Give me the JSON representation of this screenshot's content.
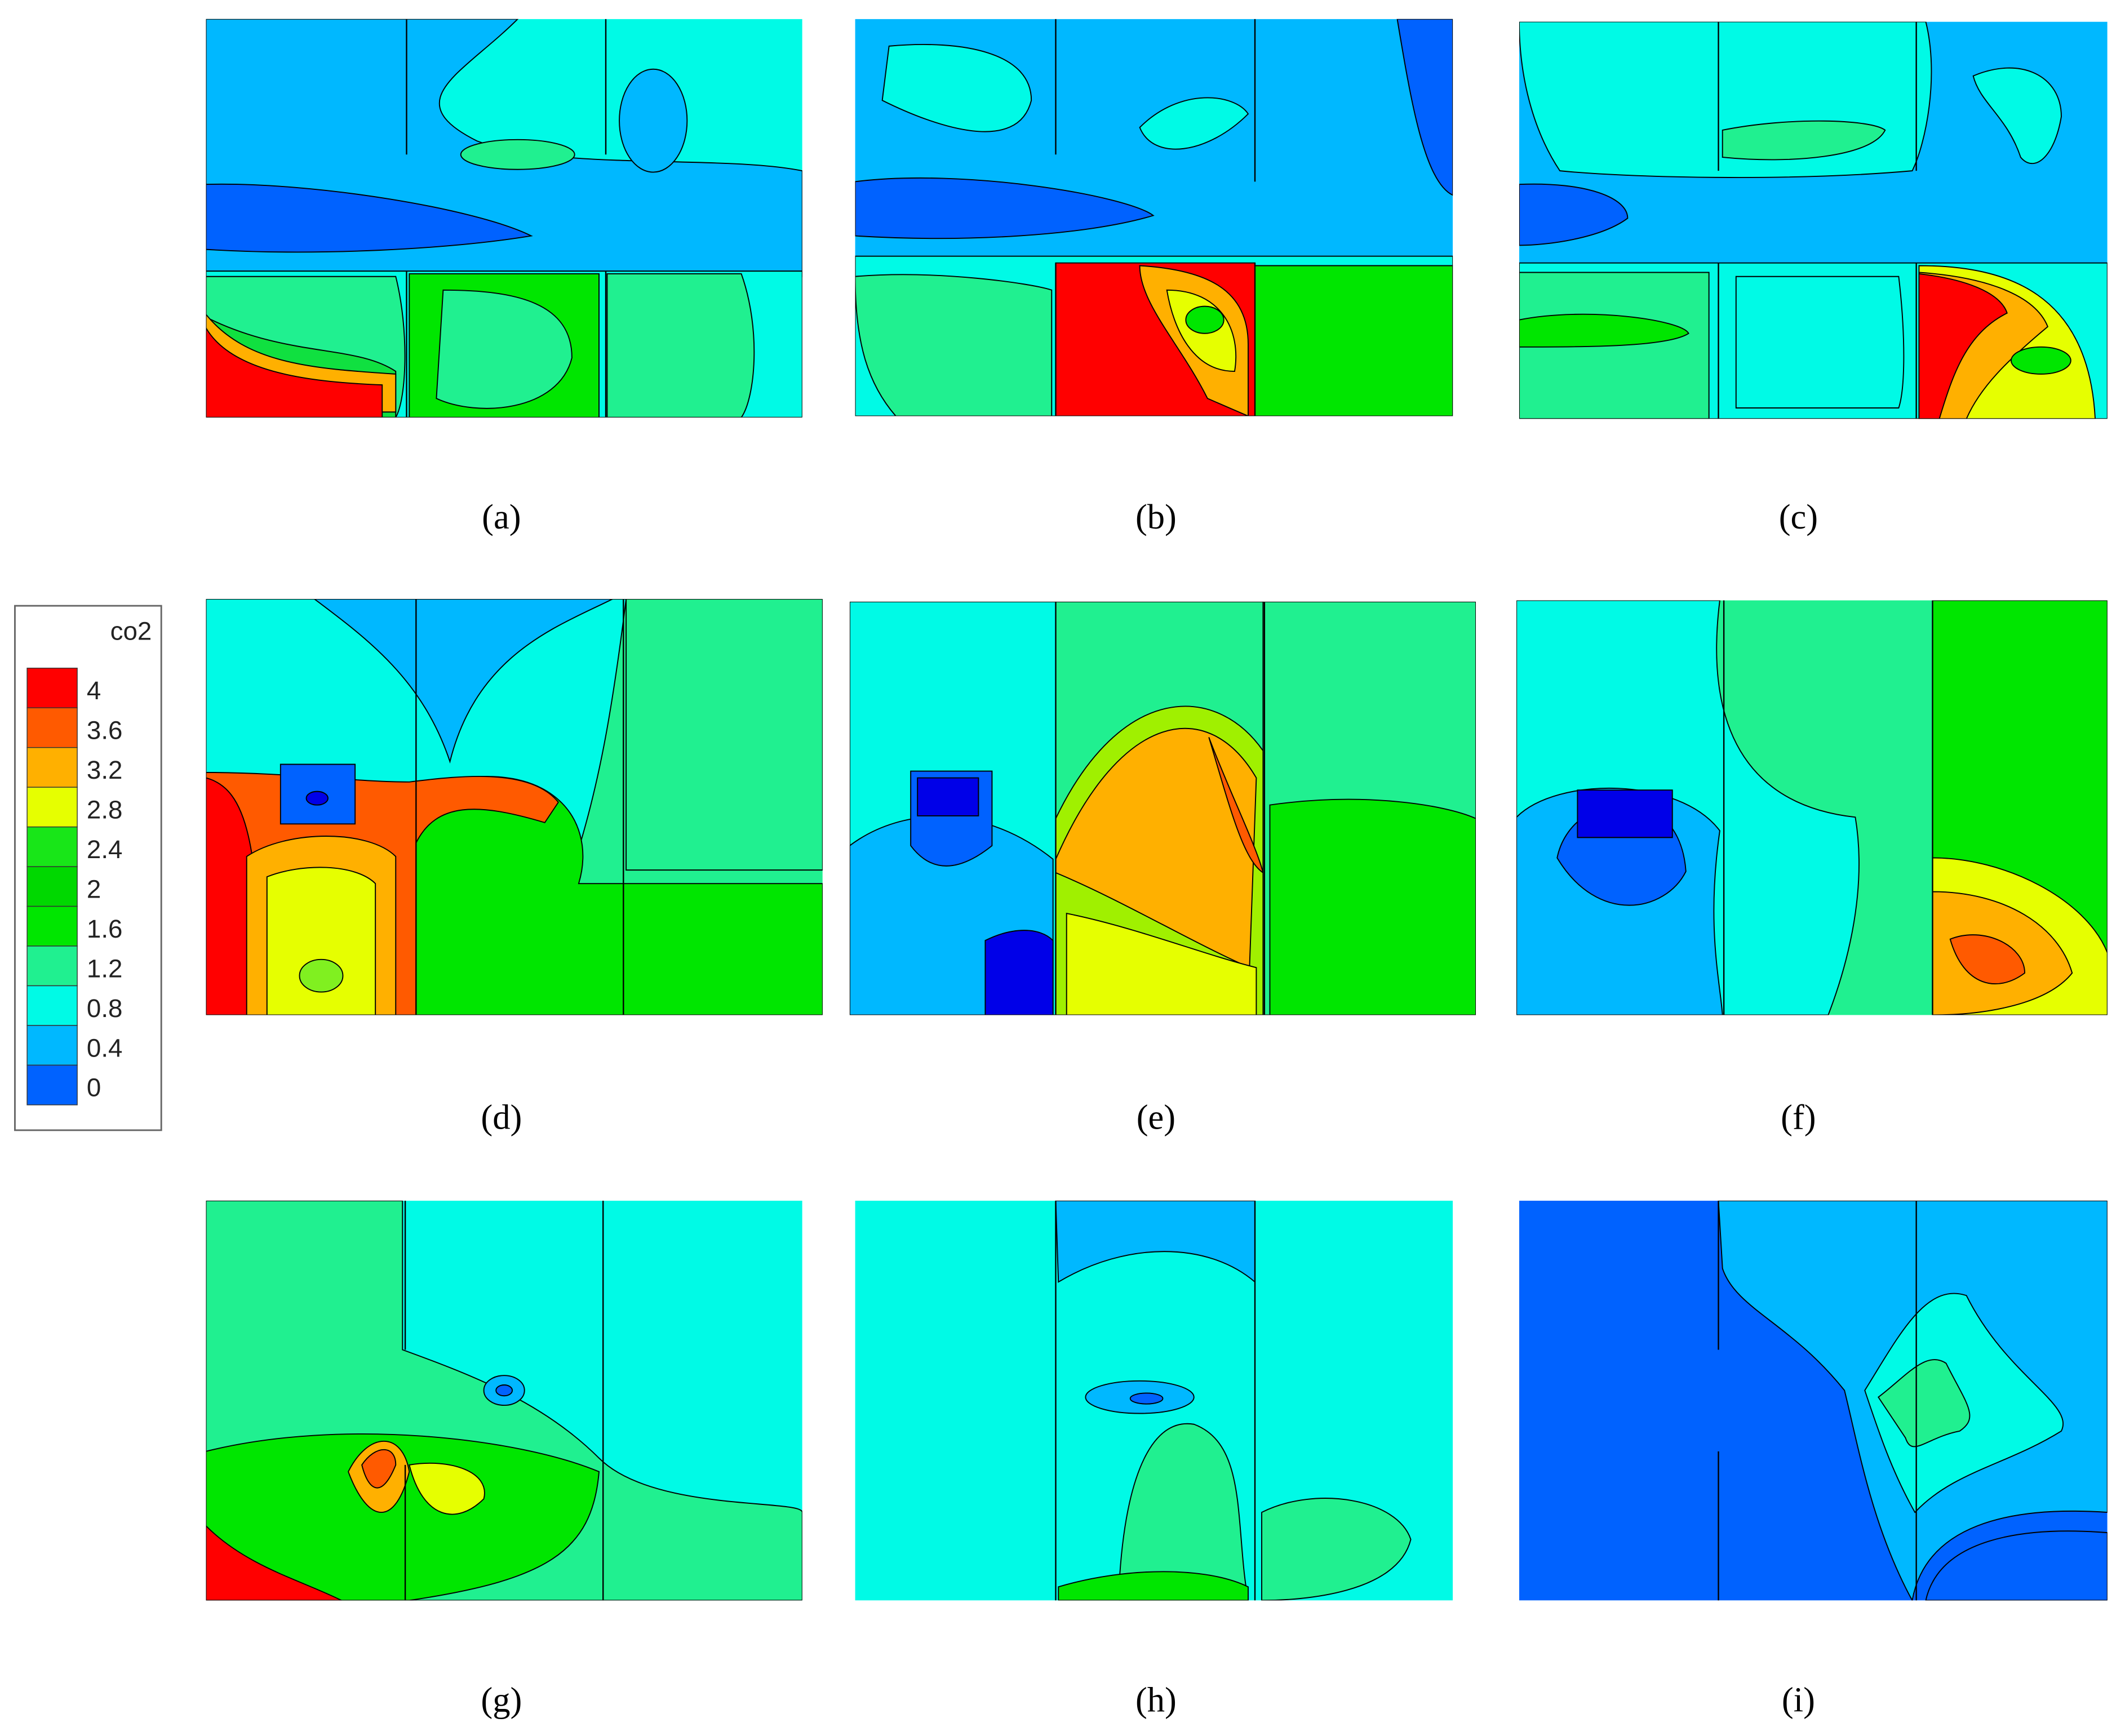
{
  "legend": {
    "title": "co2",
    "labels": [
      "4",
      "3.6",
      "3.2",
      "2.8",
      "2.4",
      "2",
      "1.6",
      "1.2",
      "0.8",
      "0.4",
      "0"
    ]
  },
  "panels": [
    {
      "label": "(a)"
    },
    {
      "label": "(b)"
    },
    {
      "label": "(c)"
    },
    {
      "label": "(d)"
    },
    {
      "label": "(e)"
    },
    {
      "label": "(f)"
    },
    {
      "label": "(g)"
    },
    {
      "label": "(h)"
    },
    {
      "label": "(i)"
    }
  ]
}
